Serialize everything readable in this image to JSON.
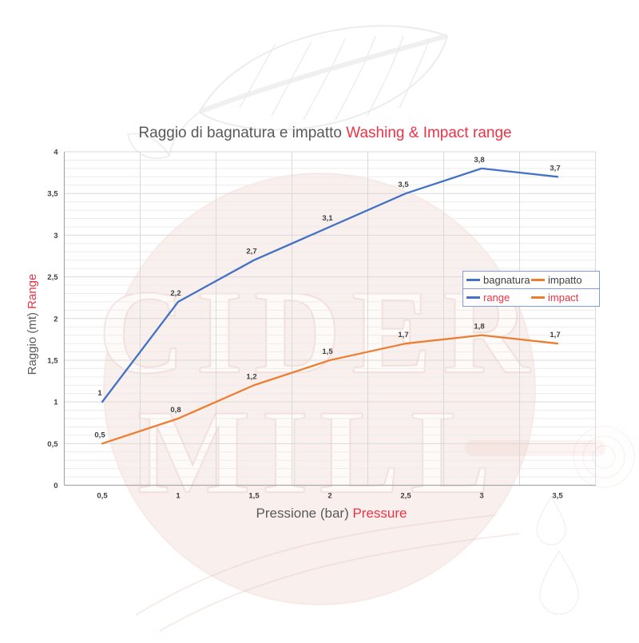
{
  "watermark": {
    "line1": "CIDER",
    "line2": "MILL"
  },
  "title": {
    "main": "Raggio di bagnatura e impatto ",
    "accent": "Washing & Impact range"
  },
  "x_axis": {
    "title_main": "Pressione (bar) ",
    "title_accent": "Pressure",
    "tick_labels": [
      "0,5",
      "1",
      "1,5",
      "2",
      "2,5",
      "3",
      "3,5"
    ]
  },
  "y_axis": {
    "title_main": "Raggio (mt) ",
    "title_accent": "Range",
    "tick_labels": [
      "0",
      "0,5",
      "1",
      "1,5",
      "2",
      "2,5",
      "3",
      "3,5",
      "4"
    ],
    "tick_values": [
      0,
      0.5,
      1,
      1.5,
      2,
      2.5,
      3,
      3.5,
      4
    ]
  },
  "legend": {
    "rows": [
      {
        "items": [
          {
            "label": "bagnatura",
            "swatch": "#4472C4",
            "text_color": "#404040"
          },
          {
            "label": "impatto",
            "swatch": "#ED7D31",
            "text_color": "#404040"
          }
        ]
      },
      {
        "items": [
          {
            "label": "range",
            "swatch": "#4472C4",
            "text_color": "#ED3347"
          },
          {
            "label": "impact",
            "swatch": "#ED7D31",
            "text_color": "#ED3347"
          }
        ]
      }
    ]
  },
  "chart_data": {
    "type": "line",
    "x": [
      0.5,
      1,
      1.5,
      2,
      2.5,
      3,
      3.5
    ],
    "x_categories_display": [
      "0,5",
      "1",
      "1,5",
      "2",
      "2,5",
      "3",
      "3,5"
    ],
    "series": [
      {
        "name": "bagnatura / range",
        "color": "#4472C4",
        "values": [
          1,
          2.2,
          2.7,
          3.1,
          3.5,
          3.8,
          3.7
        ],
        "labels": [
          "1",
          "2,2",
          "2,7",
          "3,1",
          "3,5",
          "3,8",
          "3,7"
        ]
      },
      {
        "name": "impatto / impact",
        "color": "#ED7D31",
        "values": [
          0.5,
          0.8,
          1.2,
          1.5,
          1.7,
          1.8,
          1.7
        ],
        "labels": [
          "0,5",
          "0,8",
          "1,2",
          "1,5",
          "1,7",
          "1,8",
          "1,7"
        ]
      }
    ],
    "title": "Raggio di bagnatura e impatto Washing & Impact range",
    "xlabel": "Pressione (bar) Pressure",
    "ylabel": "Raggio (mt) Range",
    "ylim": [
      0,
      4
    ],
    "grid": {
      "y_major": 0.5,
      "y_minor": 0.1,
      "x_major_between_categories": true
    },
    "legend_position": "inside-right-middle"
  },
  "colors": {
    "blue": "#4472C4",
    "orange": "#ED7D31",
    "red_accent": "#ED3347",
    "title_gray": "#595959",
    "tick_gray": "#404040",
    "grid_major": "#D9D9D9",
    "grid_minor": "#ECECEC",
    "axis_line": "#A8A8A8",
    "legend_border": "#7F9FD4",
    "watermark_pink": "#F3E2DE"
  }
}
